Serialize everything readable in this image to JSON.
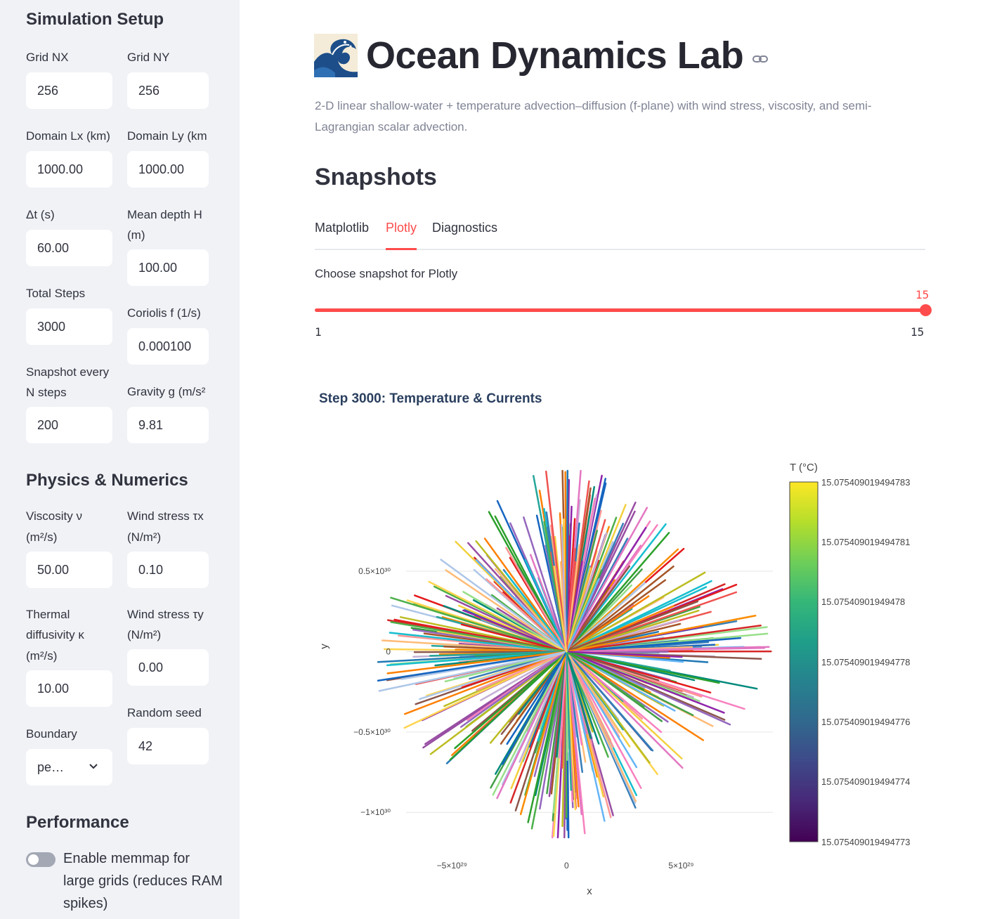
{
  "sidebar": {
    "setup_title": "Simulation Setup",
    "grid_nx_label": "Grid NX",
    "grid_nx": "256",
    "grid_ny_label": "Grid NY",
    "grid_ny": "256",
    "lx_label": "Domain Lx (km)",
    "lx": "1000.00",
    "ly_label": "Domain Ly (km",
    "ly": "1000.00",
    "dt_label": "Δt (s)",
    "dt": "60.00",
    "depth_label_1": "Mean depth H",
    "depth_label_2": "(m)",
    "depth": "100.00",
    "steps_label": "Total Steps",
    "steps": "3000",
    "coriolis_label": "Coriolis f (1/s)",
    "coriolis": "0.000100",
    "snap_label_1": "Snapshot every",
    "snap_label_2": "N steps",
    "snap": "200",
    "gravity_label": "Gravity g (m/s²",
    "gravity": "9.81",
    "physics_title": "Physics & Numerics",
    "visc_label_1": "Viscosity ν",
    "visc_label_2": "(m²/s)",
    "visc": "50.00",
    "taux_label_1": "Wind stress τx",
    "taux_label_2": "(N/m²)",
    "taux": "0.10",
    "kappa_label_1": "Thermal",
    "kappa_label_2": "diffusivity κ",
    "kappa_label_3": "(m²/s)",
    "kappa": "10.00",
    "tauy_label_1": "Wind stress τy",
    "tauy_label_2": "(N/m²)",
    "tauy": "0.00",
    "seed_label": "Random seed",
    "seed": "42",
    "boundary_label": "Boundary",
    "boundary": "pe…",
    "performance_title": "Performance",
    "memmap_label": "Enable memmap for large grids (reduces RAM spikes)"
  },
  "main": {
    "title": "Ocean Dynamics Lab",
    "subtitle": "2-D linear shallow-water + temperature advection–diffusion (f-plane) with wind stress, viscosity, and semi-Lagrangian scalar advection.",
    "section": "Snapshots",
    "tabs": [
      "Matplotlib",
      "Plotly",
      "Diagnostics"
    ],
    "active_tab": "Plotly",
    "slider_label": "Choose snapshot for Plotly",
    "slider_value": "15",
    "slider_min": "1",
    "slider_max": "15"
  },
  "chart_data": {
    "type": "line",
    "title": "Step 3000: Temperature & Currents",
    "xlabel": "x",
    "ylabel": "y",
    "x_ticks": [
      "−5×10²⁹",
      "0",
      "5×10²⁹"
    ],
    "y_ticks": [
      "−1×10³⁰",
      "−0.5×10³⁰",
      "0",
      "0.5×10³⁰"
    ],
    "xlim": [
      -7e+29,
      9e+29
    ],
    "ylim": [
      1.3e+30,
      -1.2e+30
    ],
    "description_of_marks": "dense starburst of colored line segments radiating from origin",
    "colorbar": {
      "title": "T (°C)",
      "ticks": [
        "15.075409019494783",
        "15.075409019494781",
        "15.07540901949478",
        "15.075409019494778",
        "15.075409019494776",
        "15.075409019494774",
        "15.075409019494773"
      ],
      "colorscale": [
        "#fde725",
        "#b5de2b",
        "#6ece58",
        "#35b779",
        "#1f9e89",
        "#26828e",
        "#31688e",
        "#3e4989",
        "#482878",
        "#440154"
      ]
    }
  }
}
